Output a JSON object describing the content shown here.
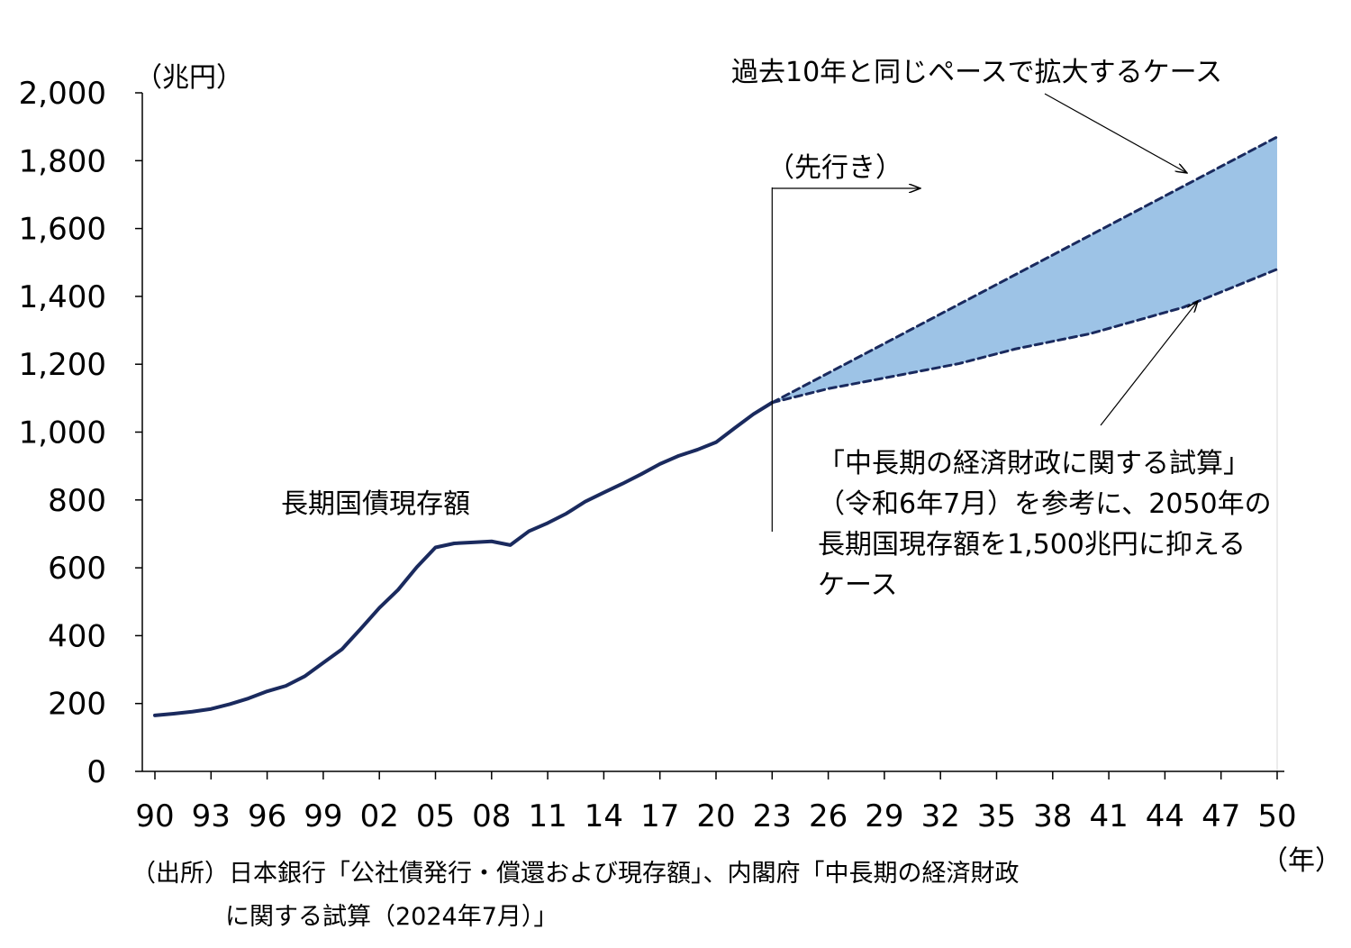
{
  "chart_data": {
    "type": "line",
    "x_tick_labels": [
      "90",
      "93",
      "96",
      "99",
      "02",
      "05",
      "08",
      "11",
      "14",
      "17",
      "20",
      "23",
      "26",
      "29",
      "32",
      "35",
      "38",
      "41",
      "44",
      "47",
      "50"
    ],
    "y_tick_labels": [
      "0",
      "200",
      "400",
      "600",
      "800",
      "1,000",
      "1,200",
      "1,400",
      "1,600",
      "1,800",
      "2,000"
    ],
    "y_ticks": [
      0,
      200,
      400,
      600,
      800,
      1000,
      1200,
      1400,
      1600,
      1800,
      2000
    ],
    "xlim": [
      1990,
      2050
    ],
    "ylim": [
      0,
      2000
    ],
    "y_unit": "（兆円）",
    "x_unit": "（年）",
    "series": [
      {
        "name": "長期国債現存額",
        "color": "#1a2a5e",
        "style": "solid",
        "x": [
          1990,
          1991,
          1992,
          1993,
          1994,
          1995,
          1996,
          1997,
          1998,
          1999,
          2000,
          2001,
          2002,
          2003,
          2004,
          2005,
          2006,
          2007,
          2008,
          2009,
          2010,
          2011,
          2012,
          2013,
          2014,
          2015,
          2016,
          2017,
          2018,
          2019,
          2020,
          2021,
          2022,
          2023
        ],
        "y": [
          165,
          170,
          176,
          184,
          198,
          215,
          236,
          252,
          280,
          320,
          360,
          420,
          482,
          535,
          602,
          660,
          672,
          675,
          678,
          667,
          708,
          732,
          760,
          795,
          822,
          848,
          876,
          906,
          930,
          948,
          970,
          1012,
          1053,
          1087
        ]
      },
      {
        "name": "過去10年と同じペースで拡大するケース",
        "color": "#1a2a5e",
        "style": "dashed",
        "x": [
          2023,
          2050
        ],
        "y": [
          1087,
          1870
        ]
      },
      {
        "name": "「中長期の経済財政に関する試算」（令和6年7月）を参考に、2050年の長期国現存額を1,500兆円に抑えるケース",
        "color": "#1a2a5e",
        "style": "dashed",
        "x": [
          2023,
          2026,
          2030,
          2033,
          2036,
          2040,
          2045,
          2050
        ],
        "y": [
          1087,
          1128,
          1170,
          1202,
          1245,
          1290,
          1368,
          1480
        ]
      }
    ],
    "band_fill": "#9dc3e6",
    "forecast_start": 2023
  },
  "annotations": {
    "series_label": "長期国債現存額",
    "forecast_label": "（先行き）",
    "upper_case": "過去10年と同じペースで拡大するケース",
    "lower_case_lines": [
      "「中長期の経済財政に関する試算」",
      "（令和6年7月）を参考に、2050年の",
      "長期国現存額を1,500兆円に抑える",
      "ケース"
    ]
  },
  "source_lines": [
    "（出所）日本銀行「公社債発行・償還および現存額」、内閣府「中長期の経済財政",
    "に関する試算（2024年7月）」"
  ]
}
